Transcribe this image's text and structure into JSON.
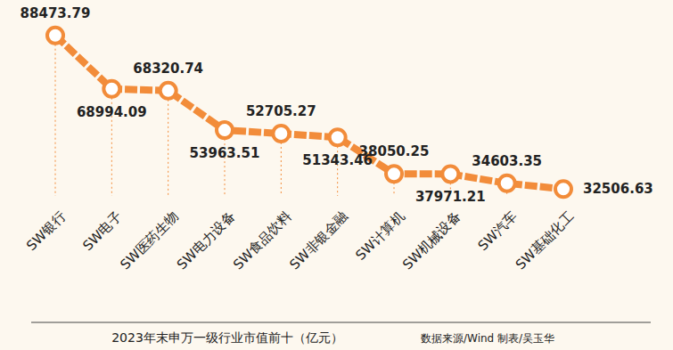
{
  "chart_data": {
    "type": "line",
    "title": "2023年末申万一级行业市值前十（亿元）",
    "annotations": [
      "数据来源/Wind 制表/吴玉华"
    ],
    "categories": [
      "SW银行",
      "SW电子",
      "SW医药生物",
      "SW电力设备",
      "SW食品饮料",
      "SW非银金融",
      "SW计算机",
      "SW机械设备",
      "SW汽车",
      "SW基础化工"
    ],
    "values": [
      88473.79,
      68994.09,
      68320.74,
      53963.51,
      52705.27,
      51343.46,
      38050.25,
      37971.21,
      34603.35,
      32506.63
    ],
    "color": "#f28c3a",
    "marker": "circle",
    "ylim": [
      30000,
      90000
    ],
    "data_labels": true,
    "tick_labels": "x",
    "grid": false
  }
}
